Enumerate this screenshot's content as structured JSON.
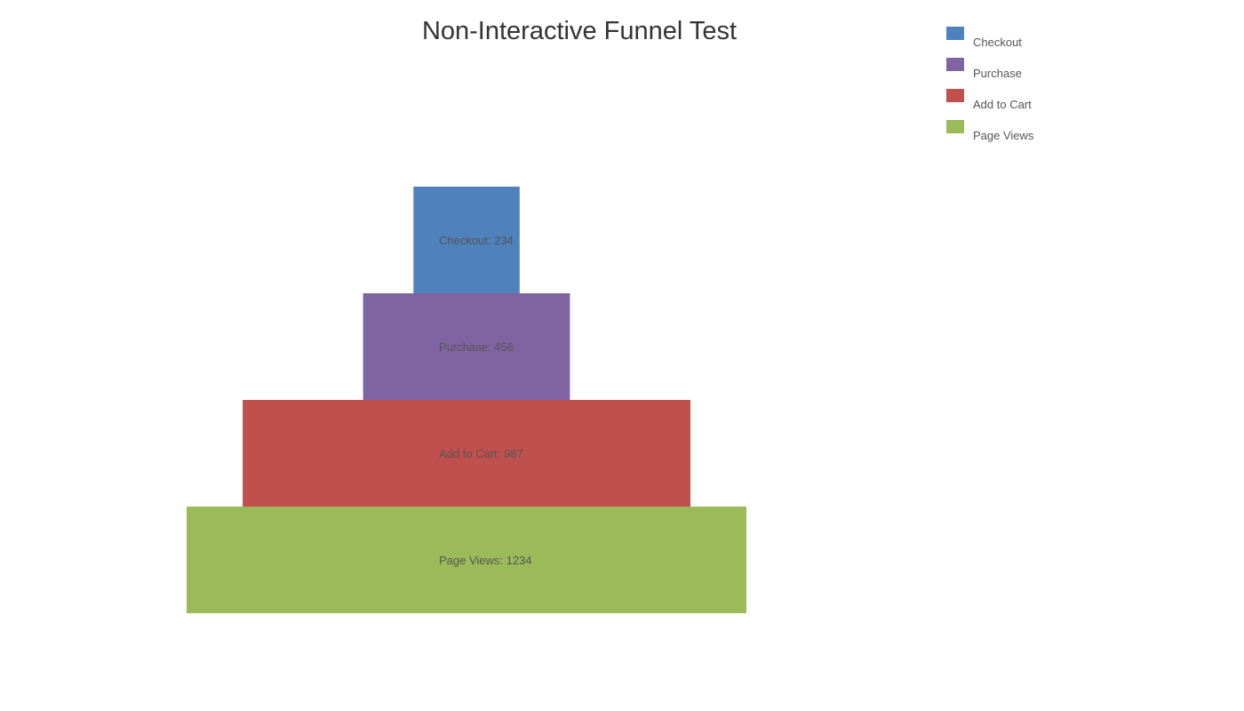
{
  "chart_data": {
    "type": "funnel",
    "title": "Non-Interactive Funnel Test",
    "stages": [
      {
        "name": "Checkout",
        "value": 234,
        "color": "#4f81bd",
        "label": "Checkout: 234"
      },
      {
        "name": "Purchase",
        "value": 456,
        "color": "#8064a2",
        "label": "Purchase: 456"
      },
      {
        "name": "Add to Cart",
        "value": 987,
        "color": "#c0504d",
        "label": "Add to Cart: 987"
      },
      {
        "name": "Page Views",
        "value": 1234,
        "color": "#9bbb59",
        "label": "Page Views: 1234"
      }
    ],
    "legend": {
      "placement": "top-right",
      "items": [
        "Checkout",
        "Purchase",
        "Add to Cart",
        "Page Views"
      ]
    }
  }
}
